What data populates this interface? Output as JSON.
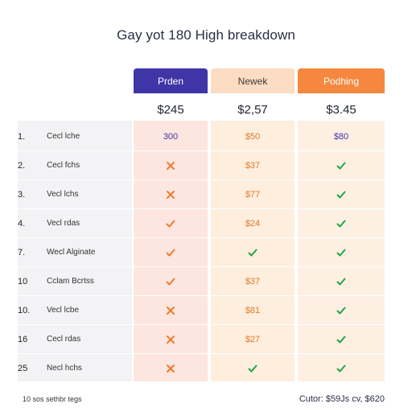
{
  "title": "Gay yot 180 High breakdown",
  "plans": [
    {
      "name": "Prden",
      "price": "$245"
    },
    {
      "name": "Newek",
      "price": "$2,57"
    },
    {
      "name": "Podhing",
      "price": "$3.45"
    }
  ],
  "rows": [
    {
      "num": "1.",
      "label": "Cecl lche",
      "a": {
        "type": "text",
        "text": "300"
      },
      "b": {
        "type": "text",
        "text": "$50"
      },
      "c": {
        "type": "text",
        "text": "$80"
      }
    },
    {
      "num": "2.",
      "label": "Cecl fchs",
      "a": {
        "type": "icon",
        "icon": "x-icon"
      },
      "b": {
        "type": "text",
        "text": "$37"
      },
      "c": {
        "type": "icon",
        "icon": "check-icon-green"
      }
    },
    {
      "num": "3.",
      "label": "Vecl lchs",
      "a": {
        "type": "icon",
        "icon": "x-icon"
      },
      "b": {
        "type": "text",
        "text": "$77"
      },
      "c": {
        "type": "icon",
        "icon": "check-icon-green"
      }
    },
    {
      "num": "4.",
      "label": "Vecl rdas",
      "a": {
        "type": "icon",
        "icon": "check-icon-orange"
      },
      "b": {
        "type": "text",
        "text": "$24"
      },
      "c": {
        "type": "icon",
        "icon": "check-icon-green"
      }
    },
    {
      "num": "7.",
      "label": "Wecl Alginate",
      "a": {
        "type": "icon",
        "icon": "check-icon-orange"
      },
      "b": {
        "type": "icon",
        "icon": "check-icon-green"
      },
      "c": {
        "type": "icon",
        "icon": "check-icon-green"
      }
    },
    {
      "num": "10",
      "label": "Cclam Bcrtss",
      "a": {
        "type": "icon",
        "icon": "check-icon-orange"
      },
      "b": {
        "type": "text",
        "text": "$37"
      },
      "c": {
        "type": "icon",
        "icon": "check-icon-green"
      }
    },
    {
      "num": "10.",
      "label": "Vecl lcbe",
      "a": {
        "type": "icon",
        "icon": "x-icon"
      },
      "b": {
        "type": "text",
        "text": "$81"
      },
      "c": {
        "type": "icon",
        "icon": "check-icon-green"
      }
    },
    {
      "num": "16",
      "label": "Cecl rdas",
      "a": {
        "type": "icon",
        "icon": "x-icon"
      },
      "b": {
        "type": "text",
        "text": "$27"
      },
      "c": {
        "type": "icon",
        "icon": "check-icon-green"
      }
    },
    {
      "num": "25",
      "label": "Necl hchs",
      "a": {
        "type": "icon",
        "icon": "x-icon"
      },
      "b": {
        "type": "icon",
        "icon": "check-icon-green"
      },
      "c": {
        "type": "icon",
        "icon": "check-icon-green"
      }
    }
  ],
  "footer": {
    "left": "10 sos sethbr tegs",
    "right": "Cutor: $59Js cv, $620"
  },
  "colors": {
    "plan_a": "#3f35a7",
    "plan_b": "#fcdcc2",
    "plan_c": "#f5883e",
    "x": "#f07a2e",
    "check_orange": "#f07a2e",
    "check_green": "#22a447"
  }
}
